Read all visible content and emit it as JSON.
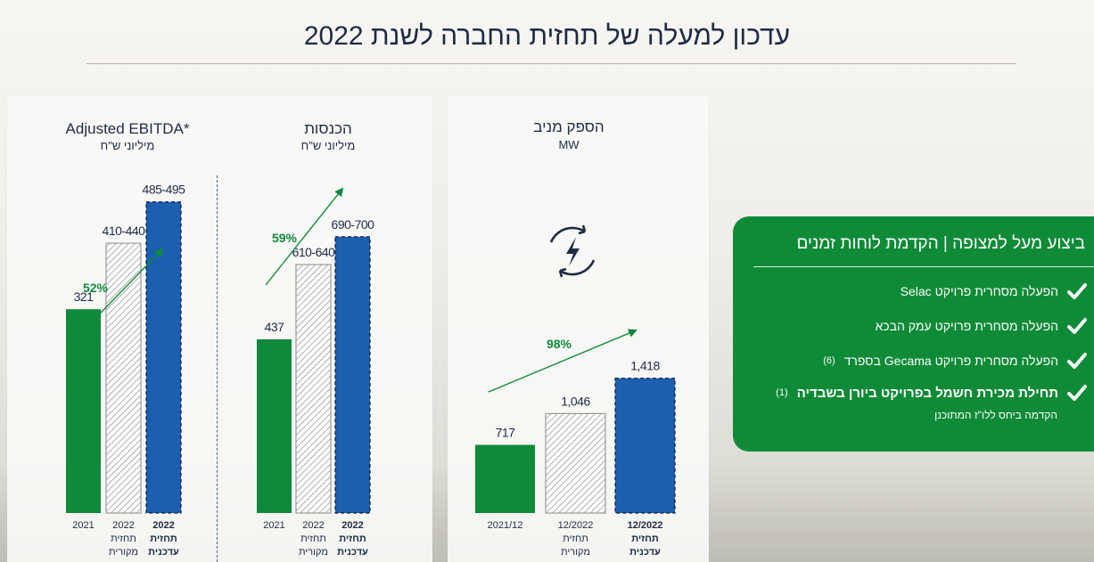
{
  "page": {
    "title": "עדכון למעלה של תחזית החברה לשנת 2022"
  },
  "colors": {
    "green": "#0e8a3a",
    "blue": "#1c5fb0",
    "hatch": "#8c8c8c",
    "navy": "#1f2a44",
    "arrow": "#0e8a3a"
  },
  "chart_data": [
    {
      "type": "bar",
      "title": "Adjusted EBITDA*",
      "unit": "מיליוני ש\"ח",
      "ylim": [
        0,
        560
      ],
      "categories": [
        "2021",
        "2022 תחזית מקורית",
        "2022 תחזית עדכנית"
      ],
      "category_lines": [
        [
          "2021"
        ],
        [
          "2022",
          "תחזית",
          "מקורית"
        ],
        [
          "2022",
          "תחזית",
          "עדכנית"
        ]
      ],
      "category_bold": [
        false,
        false,
        true
      ],
      "values": [
        321,
        425,
        490
      ],
      "value_labels": [
        "321",
        "410-440",
        "485-495"
      ],
      "styles": [
        "solid-green",
        "hatched",
        "solid-blue-dashed"
      ],
      "growth": "52%"
    },
    {
      "type": "bar",
      "title": "הכנסות",
      "unit": "מיליוני ש\"ח",
      "ylim": [
        0,
        800
      ],
      "categories": [
        "2021",
        "2022 תחזית מקורית",
        "2022 תחזית עדכנית"
      ],
      "category_lines": [
        [
          "2021"
        ],
        [
          "2022",
          "תחזית",
          "מקורית"
        ],
        [
          "2022",
          "תחזית",
          "עדכנית"
        ]
      ],
      "category_bold": [
        false,
        false,
        true
      ],
      "values": [
        437,
        625,
        695
      ],
      "value_labels": [
        "437",
        "610-640",
        "690-700"
      ],
      "styles": [
        "solid-green",
        "hatched",
        "solid-blue-dashed"
      ],
      "growth": "59%"
    },
    {
      "type": "bar",
      "title": "הספק מניב",
      "unit": "MW",
      "ylim": [
        0,
        1950
      ],
      "categories": [
        "2021/12",
        "12/2022 תחזית מקורית",
        "12/2022 תחזית עדכנית"
      ],
      "category_lines": [
        [
          "2021/12"
        ],
        [
          "12/2022",
          "תחזית",
          "מקורית"
        ],
        [
          "12/2022",
          "תחזית",
          "עדכנית"
        ]
      ],
      "category_bold": [
        false,
        false,
        true
      ],
      "values": [
        717,
        1046,
        1418
      ],
      "value_labels": [
        "717",
        "1,046",
        "1,418"
      ],
      "styles": [
        "solid-green",
        "hatched",
        "solid-blue-dashed"
      ],
      "growth": "98%",
      "icon": "power-cycle-icon"
    }
  ],
  "callout": {
    "header": "ביצוע מעל למצופה | הקדמת לוחות זמנים",
    "items": [
      {
        "text": "הפעלה מסחרית פרויקט Selac",
        "badge": ""
      },
      {
        "text": "הפעלה מסחרית פרויקט עמק הבכא",
        "badge": ""
      },
      {
        "text": "הפעלה מסחרית פרויקט Gecama בספרד",
        "badge": "(6)"
      },
      {
        "text": "תחילת מכירת חשמל בפרויקט ביורן בשבדיה",
        "badge": "(1)"
      }
    ],
    "note": "הקדמה ביחס ללו\"ז המתוכנן",
    "icon": "check-icon"
  }
}
